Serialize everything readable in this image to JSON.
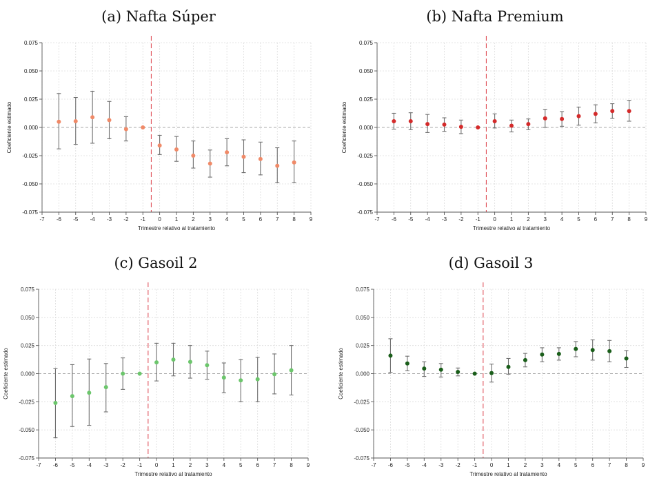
{
  "figure": {
    "background": "#ffffff"
  },
  "chart_data": [
    {
      "type": "scatter",
      "panel": "a",
      "title": "(a) Nafta Súper",
      "xlabel": "Trimestre relativo al tratamiento",
      "ylabel": "Coeficiente estimado",
      "xlim": [
        -7,
        9
      ],
      "ylim": [
        -0.075,
        0.075
      ],
      "xticks": [
        "-7",
        "-6",
        "-5",
        "-4",
        "-3",
        "-2",
        "-1",
        "0",
        "1",
        "2",
        "3",
        "4",
        "5",
        "6",
        "7",
        "8",
        "9"
      ],
      "yticks": [
        "-0.075",
        "-0.050",
        "-0.025",
        "0.000",
        "0.025",
        "0.050",
        "0.075"
      ],
      "treatment_line_x": -0.5,
      "zero_line_y": 0,
      "color": "#f08a68",
      "x": [
        -6,
        -5,
        -4,
        -3,
        -2,
        -1,
        0,
        1,
        2,
        3,
        4,
        5,
        6,
        7,
        8
      ],
      "coef": [
        0.005,
        0.0055,
        0.009,
        0.0065,
        -0.0015,
        0.0,
        -0.016,
        -0.0195,
        -0.025,
        -0.032,
        -0.022,
        -0.026,
        -0.028,
        -0.034,
        -0.031
      ],
      "lower": [
        -0.019,
        -0.015,
        -0.014,
        -0.01,
        -0.012,
        null,
        -0.024,
        -0.03,
        -0.036,
        -0.044,
        -0.034,
        -0.04,
        -0.042,
        -0.049,
        -0.049
      ],
      "upper": [
        0.03,
        0.0265,
        0.032,
        0.023,
        0.0095,
        null,
        -0.007,
        -0.008,
        -0.012,
        -0.02,
        -0.01,
        -0.011,
        -0.013,
        -0.018,
        -0.012
      ]
    },
    {
      "type": "scatter",
      "panel": "b",
      "title": "(b) Nafta Premium",
      "xlabel": "Trimestre relativo al tratamiento",
      "ylabel": "Coeficiente estimado",
      "xlim": [
        -7,
        9
      ],
      "ylim": [
        -0.075,
        0.075
      ],
      "xticks": [
        "-7",
        "-6",
        "-5",
        "-4",
        "-3",
        "-2",
        "-1",
        "0",
        "1",
        "2",
        "3",
        "4",
        "5",
        "6",
        "7",
        "8",
        "9"
      ],
      "yticks": [
        "-0.075",
        "-0.050",
        "-0.025",
        "0.000",
        "0.025",
        "0.050",
        "0.075"
      ],
      "treatment_line_x": -0.5,
      "zero_line_y": 0,
      "color": "#d42a2a",
      "x": [
        -6,
        -5,
        -4,
        -3,
        -2,
        -1,
        0,
        1,
        2,
        3,
        4,
        5,
        6,
        7,
        8
      ],
      "coef": [
        0.0055,
        0.0055,
        0.003,
        0.0025,
        0.0005,
        0.0,
        0.0055,
        0.0015,
        0.003,
        0.008,
        0.0075,
        0.01,
        0.012,
        0.0145,
        0.0145
      ],
      "lower": [
        -0.0015,
        -0.002,
        -0.0045,
        -0.0035,
        -0.0055,
        null,
        -0.0005,
        -0.004,
        -0.002,
        0.0,
        0.001,
        0.002,
        0.004,
        0.008,
        0.0055
      ],
      "upper": [
        0.0125,
        0.013,
        0.0115,
        0.0085,
        0.0065,
        null,
        0.012,
        0.0065,
        0.0075,
        0.016,
        0.014,
        0.018,
        0.02,
        0.021,
        0.024
      ]
    },
    {
      "type": "scatter",
      "panel": "c",
      "title": "(c) Gasoil 2",
      "xlabel": "Trimestre relativo al tratamiento",
      "ylabel": "Coeficiente estimado",
      "xlim": [
        -7,
        9
      ],
      "ylim": [
        -0.075,
        0.075
      ],
      "xticks": [
        "-7",
        "-6",
        "-5",
        "-4",
        "-3",
        "-2",
        "-1",
        "0",
        "1",
        "2",
        "3",
        "4",
        "5",
        "6",
        "7",
        "8",
        "9"
      ],
      "yticks": [
        "-0.075",
        "-0.050",
        "-0.025",
        "0.000",
        "0.025",
        "0.050",
        "0.075"
      ],
      "treatment_line_x": -0.5,
      "zero_line_y": 0,
      "color": "#6cc66c",
      "x": [
        -6,
        -5,
        -4,
        -3,
        -2,
        -1,
        0,
        1,
        2,
        3,
        4,
        5,
        6,
        7,
        8
      ],
      "coef": [
        -0.026,
        -0.02,
        -0.017,
        -0.012,
        0.0,
        0.0,
        0.01,
        0.0125,
        0.0105,
        0.0075,
        -0.0035,
        -0.006,
        -0.005,
        -0.0005,
        0.003
      ],
      "lower": [
        -0.057,
        -0.047,
        -0.046,
        -0.034,
        -0.014,
        null,
        -0.0065,
        -0.002,
        -0.004,
        -0.005,
        -0.017,
        -0.025,
        -0.025,
        -0.018,
        -0.019
      ],
      "upper": [
        0.0045,
        0.008,
        0.013,
        0.009,
        0.014,
        null,
        0.027,
        0.027,
        0.025,
        0.02,
        0.0095,
        0.0125,
        0.0145,
        0.0175,
        0.025
      ]
    },
    {
      "type": "scatter",
      "panel": "d",
      "title": "(d) Gasoil 3",
      "xlabel": "Trimestre relativo al tratamiento",
      "ylabel": "Coeficiente estimado",
      "xlim": [
        -7,
        9
      ],
      "ylim": [
        -0.075,
        0.075
      ],
      "xticks": [
        "-7",
        "-6",
        "-5",
        "-4",
        "-3",
        "-2",
        "-1",
        "0",
        "1",
        "2",
        "3",
        "4",
        "5",
        "6",
        "7",
        "8",
        "9"
      ],
      "yticks": [
        "-0.075",
        "-0.050",
        "-0.025",
        "0.000",
        "0.025",
        "0.050",
        "0.075"
      ],
      "treatment_line_x": -0.5,
      "zero_line_y": 0,
      "color": "#1a5e1a",
      "x": [
        -6,
        -5,
        -4,
        -3,
        -2,
        -1,
        0,
        1,
        2,
        3,
        4,
        5,
        6,
        7,
        8
      ],
      "coef": [
        0.016,
        0.009,
        0.0045,
        0.0035,
        0.0015,
        0.0,
        0.0005,
        0.006,
        0.012,
        0.017,
        0.0175,
        0.022,
        0.021,
        0.02,
        0.0135
      ],
      "lower": [
        0.001,
        0.0025,
        -0.0025,
        -0.003,
        -0.002,
        null,
        -0.0075,
        -0.0005,
        0.006,
        0.0105,
        0.012,
        0.015,
        0.012,
        0.0105,
        0.0055
      ],
      "upper": [
        0.031,
        0.0155,
        0.0105,
        0.009,
        0.005,
        null,
        0.0085,
        0.0135,
        0.018,
        0.023,
        0.023,
        0.0285,
        0.03,
        0.0295,
        0.0205
      ]
    }
  ]
}
